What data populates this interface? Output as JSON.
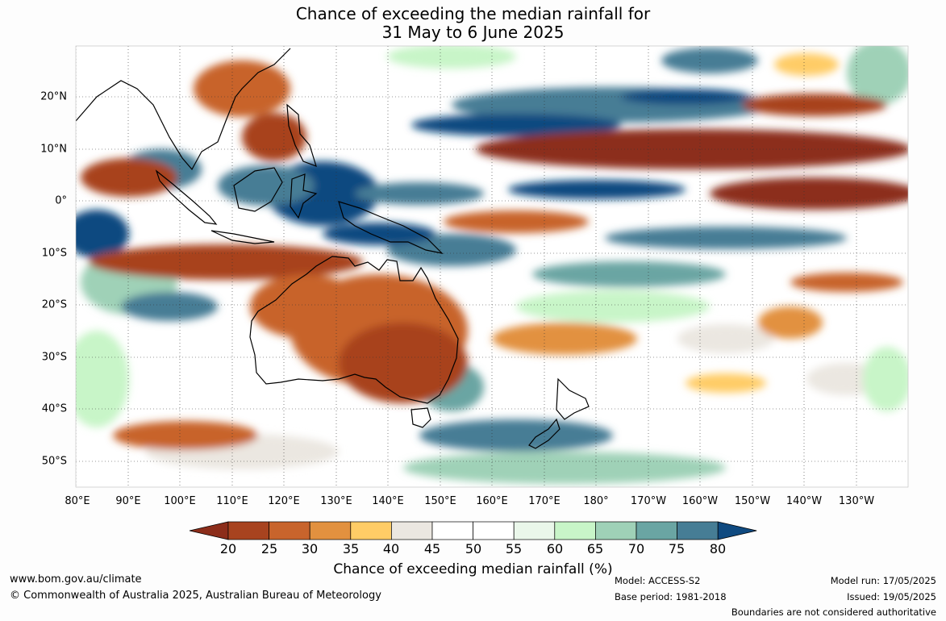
{
  "title": {
    "line1": "Chance of exceeding the median rainfall for",
    "line2": "31 May to 6 June 2025"
  },
  "map": {
    "lat_labels": [
      "20°N",
      "10°N",
      "0°",
      "10°S",
      "20°S",
      "30°S",
      "40°S",
      "50°S"
    ],
    "lon_labels": [
      "80°E",
      "90°E",
      "100°E",
      "110°E",
      "120°E",
      "130°E",
      "140°E",
      "150°E",
      "160°E",
      "170°E",
      "180°",
      "170°W",
      "160°W",
      "150°W",
      "140°W",
      "130°W"
    ]
  },
  "colorbar": {
    "label": "Chance of exceeding median rainfall (%)",
    "ticks": [
      "20",
      "25",
      "30",
      "35",
      "40",
      "45",
      "50",
      "55",
      "60",
      "65",
      "70",
      "75",
      "80"
    ],
    "colors": [
      "#8c2d1a",
      "#a8431f",
      "#c8642c",
      "#e2913f",
      "#ffcc66",
      "#ebe7e1",
      "#ffffff",
      "#ffffff",
      "#eaf7ea",
      "#c8f5c8",
      "#9fd1b7",
      "#6aa5a3",
      "#467d95",
      "#0f4a80"
    ]
  },
  "footer": {
    "website": "www.bom.gov.au/climate",
    "copyright": "© Commonwealth of Australia 2025, Australian Bureau of Meteorology",
    "model": "Model: ACCESS-S2",
    "base_period": "Base period: 1981-2018",
    "model_run": "Model run: 17/05/2025",
    "issued": "Issued: 19/05/2025",
    "disclaimer": "Boundaries are not considered authoritative"
  }
}
